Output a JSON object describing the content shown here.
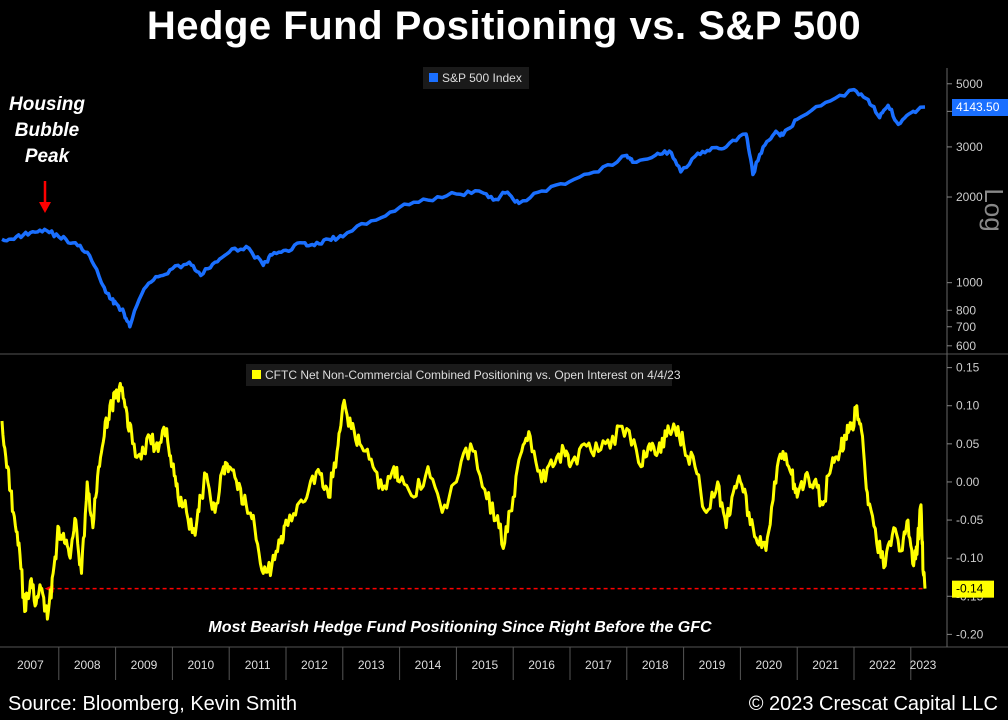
{
  "page": {
    "title": "Hedge Fund Positioning vs. S&P 500",
    "source": "Source: Bloomberg, Kevin Smith",
    "copyright": "© 2023 Crescat Capital LLC"
  },
  "colors": {
    "background": "#000000",
    "spx_line": "#1a6fff",
    "cftc_line": "#ffff00",
    "arrow": "#ff0000",
    "spx_badge": "#1a6fff",
    "cftc_badge": "#ffff00"
  },
  "chart_data": [
    {
      "type": "line",
      "title": "",
      "legend": "S&P 500 Index",
      "legend_position": "top-center",
      "scale": "log",
      "scale_label": "Log",
      "ylim": [
        580,
        5500
      ],
      "yticks": [
        600,
        700,
        800,
        1000,
        2000,
        3000,
        4000,
        5000
      ],
      "ytick_labels": [
        "600",
        "700",
        "800",
        "1000",
        "2000",
        "3000",
        "4000",
        "5000"
      ],
      "last_value_label": "4143.50",
      "annotation": {
        "lines": [
          "Housing",
          "Bubble",
          "Peak"
        ],
        "x": 2007.7,
        "arrow": true
      },
      "series": [
        {
          "name": "S&P 500 Index",
          "x": [
            2007.0,
            2007.25,
            2007.5,
            2007.75,
            2008.0,
            2008.25,
            2008.5,
            2008.75,
            2008.9,
            2009.0,
            2009.15,
            2009.25,
            2009.5,
            2009.75,
            2010.0,
            2010.3,
            2010.5,
            2010.75,
            2011.0,
            2011.3,
            2011.6,
            2011.75,
            2012.0,
            2012.3,
            2012.5,
            2012.75,
            2013.0,
            2013.5,
            2014.0,
            2014.5,
            2015.0,
            2015.4,
            2015.65,
            2015.9,
            2016.1,
            2016.5,
            2017.0,
            2017.5,
            2018.0,
            2018.1,
            2018.5,
            2018.75,
            2018.95,
            2019.25,
            2019.5,
            2019.75,
            2020.1,
            2020.22,
            2020.4,
            2020.6,
            2020.75,
            2021.0,
            2021.5,
            2022.0,
            2022.25,
            2022.45,
            2022.6,
            2022.78,
            2023.0,
            2023.25
          ],
          "values": [
            1420,
            1450,
            1500,
            1540,
            1450,
            1380,
            1280,
            1000,
            880,
            850,
            780,
            700,
            950,
            1050,
            1120,
            1180,
            1060,
            1180,
            1280,
            1340,
            1150,
            1250,
            1300,
            1380,
            1350,
            1420,
            1450,
            1650,
            1840,
            1950,
            2050,
            2100,
            1950,
            2080,
            1900,
            2100,
            2270,
            2450,
            2800,
            2650,
            2800,
            2900,
            2450,
            2850,
            2980,
            3000,
            3330,
            2400,
            3000,
            3350,
            3300,
            3750,
            4300,
            4770,
            4400,
            3800,
            4200,
            3600,
            3950,
            4143.5
          ]
        }
      ]
    },
    {
      "type": "line",
      "title": "",
      "legend": "CFTC Net Non-Commercial Combined Positioning vs. Open Interest on 4/4/23",
      "legend_position": "top-center",
      "ylim": [
        -0.21,
        0.16
      ],
      "yticks": [
        -0.2,
        -0.15,
        -0.1,
        -0.05,
        0.0,
        0.05,
        0.1,
        0.15
      ],
      "ytick_labels": [
        "-0.20",
        "-0.15",
        "-0.10",
        "-0.05",
        "0.00",
        "0.05",
        "0.10",
        "0.15"
      ],
      "last_value_label": "-0.14",
      "annotation": "Most Bearish Hedge Fund Positioning Since Right Before the GFC",
      "reference_line": {
        "value": -0.14,
        "from_x": 2007.75,
        "to_x": 2023.25,
        "style": "dashed",
        "color": "#ff0000",
        "arrow": "left"
      },
      "series": [
        {
          "name": "CFTC Net Non-Commercial Combined Positioning vs. Open Interest",
          "x": [
            2007.0,
            2007.1,
            2007.2,
            2007.3,
            2007.4,
            2007.5,
            2007.6,
            2007.7,
            2007.8,
            2007.9,
            2008.0,
            2008.1,
            2008.2,
            2008.3,
            2008.4,
            2008.5,
            2008.6,
            2008.7,
            2008.8,
            2008.9,
            2009.0,
            2009.1,
            2009.2,
            2009.3,
            2009.45,
            2009.6,
            2009.75,
            2009.9,
            2010.0,
            2010.1,
            2010.25,
            2010.4,
            2010.5,
            2010.6,
            2010.75,
            2010.9,
            2011.0,
            2011.15,
            2011.3,
            2011.45,
            2011.6,
            2011.75,
            2011.9,
            2012.0,
            2012.2,
            2012.4,
            2012.6,
            2012.75,
            2012.9,
            2013.0,
            2013.15,
            2013.3,
            2013.5,
            2013.7,
            2013.9,
            2014.0,
            2014.25,
            2014.5,
            2014.75,
            2015.0,
            2015.25,
            2015.5,
            2015.7,
            2015.85,
            2016.0,
            2016.15,
            2016.3,
            2016.5,
            2016.7,
            2016.9,
            2017.0,
            2017.25,
            2017.5,
            2017.75,
            2018.0,
            2018.25,
            2018.4,
            2018.55,
            2018.7,
            2018.85,
            2019.0,
            2019.2,
            2019.4,
            2019.6,
            2019.75,
            2019.85,
            2020.0,
            2020.15,
            2020.3,
            2020.45,
            2020.6,
            2020.75,
            2020.9,
            2021.0,
            2021.15,
            2021.3,
            2021.45,
            2021.6,
            2021.75,
            2021.85,
            2021.95,
            2022.05,
            2022.15,
            2022.25,
            2022.4,
            2022.55,
            2022.7,
            2022.85,
            2022.95,
            2023.05,
            2023.12,
            2023.18,
            2023.22,
            2023.25
          ],
          "values": [
            0.08,
            0.02,
            -0.04,
            -0.08,
            -0.17,
            -0.13,
            -0.16,
            -0.14,
            -0.18,
            -0.12,
            -0.06,
            -0.08,
            -0.1,
            -0.05,
            -0.12,
            0.0,
            -0.06,
            0.02,
            0.06,
            0.1,
            0.11,
            0.12,
            0.09,
            0.05,
            0.03,
            0.06,
            0.04,
            0.07,
            0.02,
            -0.02,
            -0.04,
            -0.07,
            -0.02,
            0.01,
            -0.04,
            0.02,
            0.02,
            -0.01,
            -0.03,
            -0.06,
            -0.12,
            -0.11,
            -0.08,
            -0.05,
            -0.03,
            -0.01,
            0.01,
            -0.02,
            0.04,
            0.1,
            0.07,
            0.05,
            0.03,
            -0.01,
            0.02,
            0.0,
            -0.02,
            0.02,
            -0.04,
            0.0,
            0.05,
            -0.01,
            -0.05,
            -0.08,
            -0.02,
            0.04,
            0.06,
            0.0,
            0.02,
            0.04,
            0.02,
            0.05,
            0.04,
            0.06,
            0.07,
            0.02,
            0.05,
            0.04,
            0.06,
            0.07,
            0.05,
            0.02,
            -0.04,
            0.0,
            -0.06,
            -0.02,
            0.0,
            -0.04,
            -0.08,
            -0.09,
            0.0,
            0.04,
            0.01,
            -0.02,
            0.01,
            0.0,
            -0.03,
            0.02,
            0.04,
            0.06,
            0.07,
            0.1,
            0.06,
            -0.03,
            -0.08,
            -0.11,
            -0.06,
            -0.09,
            -0.05,
            -0.11,
            -0.08,
            -0.03,
            -0.12,
            -0.14
          ]
        }
      ]
    },
    {
      "type": "axis",
      "xlabels": [
        "2007",
        "2008",
        "2009",
        "2010",
        "2011",
        "2012",
        "2013",
        "2014",
        "2015",
        "2016",
        "2017",
        "2018",
        "2019",
        "2020",
        "2021",
        "2022",
        "2023"
      ]
    }
  ]
}
